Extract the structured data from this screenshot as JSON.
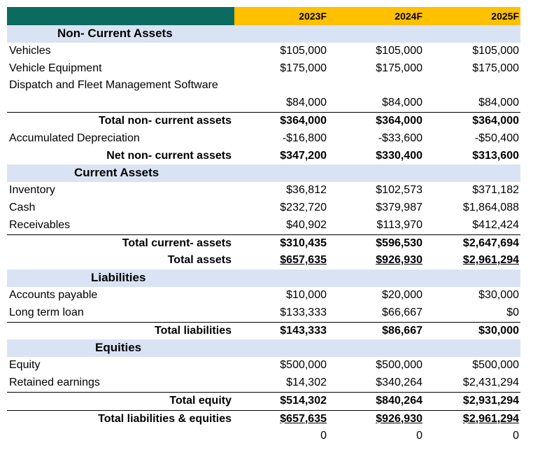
{
  "header": {
    "years": [
      "2023F",
      "2024F",
      "2025F"
    ]
  },
  "sections": {
    "non_current": "Non- Current Assets",
    "current": "Current Assets",
    "liabilities": "Liabilities",
    "equities": "Equities"
  },
  "rows": {
    "vehicles": {
      "label": "Vehicles",
      "v": [
        "$105,000",
        "$105,000",
        "$105,000"
      ]
    },
    "vehicle_equipment": {
      "label": "Vehicle Equipment",
      "v": [
        "$175,000",
        "$175,000",
        "$175,000"
      ]
    },
    "dispatch": {
      "label": "Dispatch and Fleet Management Software",
      "v": [
        "$84,000",
        "$84,000",
        "$84,000"
      ]
    },
    "total_non_current": {
      "label": "Total non- current assets",
      "v": [
        "$364,000",
        "$364,000",
        "$364,000"
      ]
    },
    "accum_dep": {
      "label": "Accumulated Depreciation",
      "v": [
        "-$16,800",
        "-$33,600",
        "-$50,400"
      ]
    },
    "net_non_current": {
      "label": "Net non- current assets",
      "v": [
        "$347,200",
        "$330,400",
        "$313,600"
      ]
    },
    "inventory": {
      "label": "Inventory",
      "v": [
        "$36,812",
        "$102,573",
        "$371,182"
      ]
    },
    "cash": {
      "label": "Cash",
      "v": [
        "$232,720",
        "$379,987",
        "$1,864,088"
      ]
    },
    "receivables": {
      "label": "Receivables",
      "v": [
        "$40,902",
        "$113,970",
        "$412,424"
      ]
    },
    "total_current": {
      "label": "Total current- assets",
      "v": [
        "$310,435",
        "$596,530",
        "$2,647,694"
      ]
    },
    "total_assets": {
      "label": "Total assets",
      "v": [
        "$657,635",
        "$926,930",
        "$2,961,294"
      ]
    },
    "accounts_payable": {
      "label": "Accounts payable",
      "v": [
        "$10,000",
        "$20,000",
        "$30,000"
      ]
    },
    "long_term_loan": {
      "label": "Long term loan",
      "v": [
        "$133,333",
        "$66,667",
        "$0"
      ]
    },
    "total_liabilities": {
      "label": "Total liabilities",
      "v": [
        "$143,333",
        "$86,667",
        "$30,000"
      ]
    },
    "equity": {
      "label": "Equity",
      "v": [
        "$500,000",
        "$500,000",
        "$500,000"
      ]
    },
    "retained": {
      "label": "Retained earnings",
      "v": [
        "$14,302",
        "$340,264",
        "$2,431,294"
      ]
    },
    "total_equity": {
      "label": "Total equity",
      "v": [
        "$514,302",
        "$840,264",
        "$2,931,294"
      ]
    },
    "total_le": {
      "label": "Total liabilities & equities",
      "v": [
        "$657,635",
        "$926,930",
        "$2,961,294"
      ]
    },
    "check": {
      "v": [
        "0",
        "0",
        "0"
      ]
    }
  }
}
